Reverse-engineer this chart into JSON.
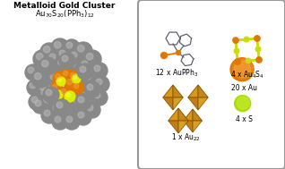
{
  "title_line1": "Metalloid Gold Cluster",
  "title_line2": "Au$_{70}$S$_{20}$(PPh$_3$)$_{12}$",
  "labels": {
    "aupph3": "12 x AuPPh$_3$",
    "au4s4": "4 x Au$_4$S$_4$",
    "au22": "1 x Au$_{22}$",
    "au": "20 x Au",
    "s": "4 x S"
  },
  "au_color": "#e07800",
  "s_color": "#bbdd00",
  "bond_color": "#d4a020",
  "pph3_line_color": "#606070",
  "octahedra_face1": "#d4950a",
  "octahedra_face2": "#b87000",
  "octahedra_face3": "#c08010",
  "octahedra_edge": "#8a5500",
  "gray_sphere": "#888888",
  "gray_highlight": "#b8b8b8",
  "border_color": "#999999"
}
